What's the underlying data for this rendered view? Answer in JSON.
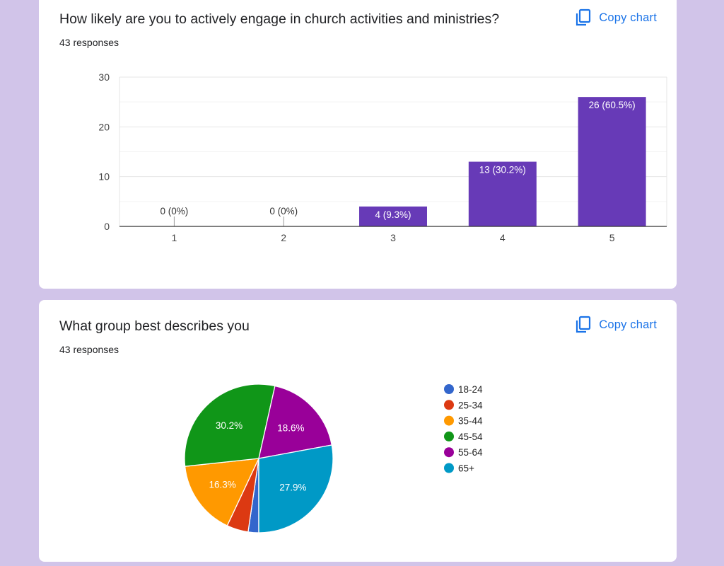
{
  "copy_label": "Copy chart",
  "cards": [
    {
      "title": "How likely are you to actively engage in church activities and ministries?",
      "responses": "43 responses"
    },
    {
      "title": "What group best describes you",
      "responses": "43 responses"
    }
  ],
  "chart_data": [
    {
      "type": "bar",
      "categories": [
        "1",
        "2",
        "3",
        "4",
        "5"
      ],
      "values": [
        0,
        0,
        4,
        13,
        26
      ],
      "data_labels": [
        "0 (0%)",
        "0 (0%)",
        "4 (9.3%)",
        "13 (30.2%)",
        "26 (60.5%)"
      ],
      "ylim": [
        0,
        30
      ],
      "yticks": [
        0,
        10,
        20,
        30
      ],
      "color": "#673ab7",
      "grid": true
    },
    {
      "type": "pie",
      "labels": [
        "18-24",
        "25-34",
        "35-44",
        "45-54",
        "55-64",
        "65+"
      ],
      "values": [
        2.3,
        4.7,
        16.3,
        30.2,
        18.6,
        27.9
      ],
      "slice_labels": [
        "",
        "",
        "16.3%",
        "30.2%",
        "18.6%",
        "27.9%"
      ],
      "colors": [
        "#3366cc",
        "#dc3912",
        "#ff9900",
        "#109618",
        "#990099",
        "#0099c6"
      ],
      "legend_position": "right"
    }
  ]
}
